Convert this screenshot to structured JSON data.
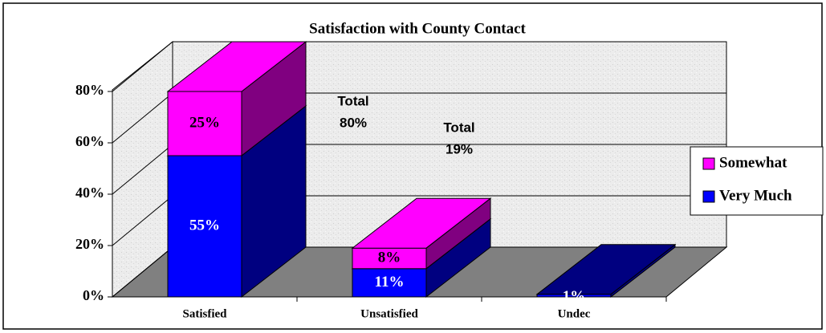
{
  "chart_data": {
    "type": "bar3d_stacked",
    "title": "Satisfaction with County Contact",
    "categories": [
      "Satisfied",
      "Unsatisfied",
      "Undec"
    ],
    "series": [
      {
        "name": "Very Much",
        "color": "#0000ff",
        "side_color": "#000080",
        "values": [
          55,
          11,
          1
        ],
        "value_labels": [
          "55%",
          "11%",
          "1%"
        ]
      },
      {
        "name": "Somewhat",
        "color": "#ff00ff",
        "side_color": "#800080",
        "values": [
          25,
          8,
          null
        ],
        "value_labels": [
          "25%",
          "8%",
          null
        ]
      }
    ],
    "ylim": [
      0,
      80
    ],
    "yticks": [
      {
        "value": 0,
        "label": "0%"
      },
      {
        "value": 20,
        "label": "20%"
      },
      {
        "value": 40,
        "label": "40%"
      },
      {
        "value": 60,
        "label": "60%"
      },
      {
        "value": 80,
        "label": "80%"
      }
    ],
    "grid": true,
    "annotations": [
      {
        "lines": [
          "Total",
          "80%"
        ]
      },
      {
        "lines": [
          "Total",
          "19%"
        ]
      }
    ],
    "legend": "right"
  }
}
